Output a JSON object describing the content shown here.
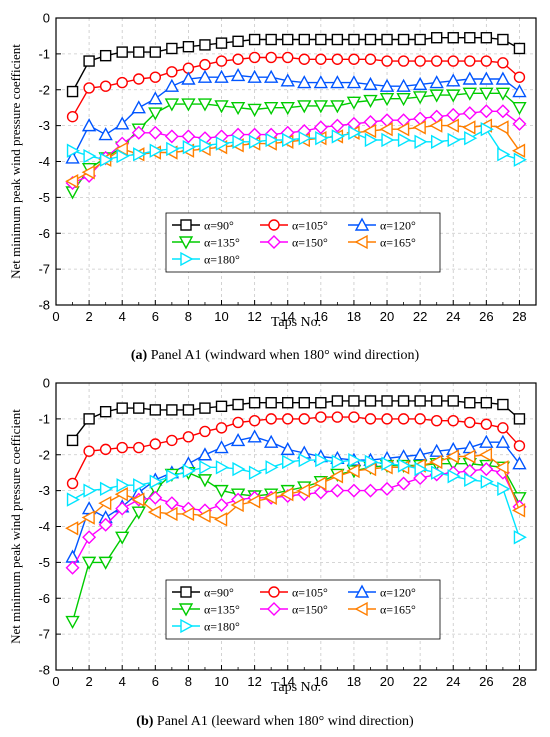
{
  "chart_data": [
    {
      "type": "line",
      "caption_label": "(a)",
      "caption_text": "Panel A1 (windward when 180° wind direction)",
      "xlabel": "Taps No.",
      "ylabel": "Net minimum peak wind pressure coefficient",
      "xlim": [
        0,
        29
      ],
      "ylim": [
        -8,
        0
      ],
      "xticks": [
        0,
        2,
        4,
        6,
        8,
        10,
        12,
        14,
        16,
        18,
        20,
        22,
        24,
        26,
        28
      ],
      "yticks": [
        0,
        -1,
        -2,
        -3,
        -4,
        -5,
        -6,
        -7,
        -8
      ],
      "grid": true,
      "legend_position": "lower-center",
      "x": [
        1,
        2,
        3,
        4,
        5,
        6,
        7,
        8,
        9,
        10,
        11,
        12,
        13,
        14,
        15,
        16,
        17,
        18,
        19,
        20,
        21,
        22,
        23,
        24,
        25,
        26,
        27,
        28
      ],
      "series": [
        {
          "name": "α=90°",
          "color": "#000000",
          "marker": "square",
          "values": [
            -2.05,
            -1.2,
            -1.05,
            -0.95,
            -0.95,
            -0.95,
            -0.85,
            -0.8,
            -0.75,
            -0.7,
            -0.65,
            -0.6,
            -0.6,
            -0.6,
            -0.6,
            -0.6,
            -0.6,
            -0.6,
            -0.6,
            -0.6,
            -0.6,
            -0.6,
            -0.55,
            -0.55,
            -0.55,
            -0.55,
            -0.6,
            -0.85
          ]
        },
        {
          "name": "α=105°",
          "color": "#ff0000",
          "marker": "circle",
          "values": [
            -2.75,
            -1.95,
            -1.9,
            -1.8,
            -1.7,
            -1.65,
            -1.5,
            -1.4,
            -1.3,
            -1.2,
            -1.15,
            -1.1,
            -1.1,
            -1.1,
            -1.15,
            -1.15,
            -1.15,
            -1.15,
            -1.15,
            -1.2,
            -1.2,
            -1.2,
            -1.2,
            -1.2,
            -1.2,
            -1.2,
            -1.25,
            -1.65
          ]
        },
        {
          "name": "α=120°",
          "color": "#0055ff",
          "marker": "triangle-up",
          "values": [
            -3.9,
            -3.0,
            -3.25,
            -2.95,
            -2.5,
            -2.25,
            -1.9,
            -1.7,
            -1.65,
            -1.65,
            -1.6,
            -1.65,
            -1.65,
            -1.75,
            -1.8,
            -1.8,
            -1.8,
            -1.8,
            -1.85,
            -1.9,
            -1.9,
            -1.85,
            -1.8,
            -1.75,
            -1.7,
            -1.7,
            -1.7,
            -2.05
          ]
        },
        {
          "name": "α=135°",
          "color": "#00cc00",
          "marker": "triangle-down",
          "values": [
            -4.85,
            -4.2,
            -3.9,
            -3.6,
            -3.1,
            -2.65,
            -2.4,
            -2.4,
            -2.4,
            -2.45,
            -2.5,
            -2.55,
            -2.5,
            -2.5,
            -2.45,
            -2.45,
            -2.45,
            -2.35,
            -2.3,
            -2.25,
            -2.25,
            -2.2,
            -2.15,
            -2.15,
            -2.1,
            -2.1,
            -2.1,
            -2.5
          ]
        },
        {
          "name": "α=150°",
          "color": "#ff00ff",
          "marker": "diamond",
          "values": [
            -4.6,
            -4.4,
            -3.9,
            -3.5,
            -3.2,
            -3.2,
            -3.3,
            -3.3,
            -3.35,
            -3.3,
            -3.25,
            -3.25,
            -3.25,
            -3.2,
            -3.15,
            -3.05,
            -3.0,
            -2.95,
            -2.9,
            -2.85,
            -2.85,
            -2.8,
            -2.75,
            -2.7,
            -2.65,
            -2.6,
            -2.6,
            -2.95
          ]
        },
        {
          "name": "α=165°",
          "color": "#ff7f00",
          "marker": "triangle-left",
          "values": [
            -4.55,
            -4.3,
            -3.95,
            -3.65,
            -3.8,
            -3.75,
            -3.75,
            -3.7,
            -3.65,
            -3.6,
            -3.55,
            -3.5,
            -3.5,
            -3.45,
            -3.4,
            -3.35,
            -3.3,
            -3.2,
            -3.15,
            -3.1,
            -3.1,
            -3.05,
            -3.0,
            -3.0,
            -3.05,
            -3.0,
            -3.05,
            -3.7
          ]
        },
        {
          "name": "α=180°",
          "color": "#00e5ff",
          "marker": "triangle-right",
          "values": [
            -3.7,
            -3.85,
            -3.95,
            -3.85,
            -3.8,
            -3.7,
            -3.65,
            -3.6,
            -3.55,
            -3.5,
            -3.45,
            -3.45,
            -3.4,
            -3.4,
            -3.35,
            -3.35,
            -3.3,
            -3.2,
            -3.4,
            -3.4,
            -3.4,
            -3.45,
            -3.45,
            -3.4,
            -3.35,
            -3.1,
            -3.8,
            -3.95
          ]
        }
      ]
    },
    {
      "type": "line",
      "caption_label": "(b)",
      "caption_text": "Panel A1 (leeward when 180° wind direction)",
      "xlabel": "Taps No.",
      "ylabel": "Net minimum peak wind pressure coefficient",
      "xlim": [
        0,
        29
      ],
      "ylim": [
        -8,
        0
      ],
      "xticks": [
        0,
        2,
        4,
        6,
        8,
        10,
        12,
        14,
        16,
        18,
        20,
        22,
        24,
        26,
        28
      ],
      "yticks": [
        0,
        -1,
        -2,
        -3,
        -4,
        -5,
        -6,
        -7,
        -8
      ],
      "grid": true,
      "legend_position": "lower-center",
      "x": [
        1,
        2,
        3,
        4,
        5,
        6,
        7,
        8,
        9,
        10,
        11,
        12,
        13,
        14,
        15,
        16,
        17,
        18,
        19,
        20,
        21,
        22,
        23,
        24,
        25,
        26,
        27,
        28
      ],
      "series": [
        {
          "name": "α=90°",
          "color": "#000000",
          "marker": "square",
          "values": [
            -1.6,
            -1.0,
            -0.8,
            -0.7,
            -0.7,
            -0.75,
            -0.75,
            -0.75,
            -0.7,
            -0.65,
            -0.6,
            -0.55,
            -0.55,
            -0.55,
            -0.55,
            -0.55,
            -0.5,
            -0.5,
            -0.5,
            -0.5,
            -0.5,
            -0.5,
            -0.5,
            -0.5,
            -0.55,
            -0.55,
            -0.6,
            -1.0
          ]
        },
        {
          "name": "α=105°",
          "color": "#ff0000",
          "marker": "circle",
          "values": [
            -2.8,
            -1.9,
            -1.85,
            -1.8,
            -1.8,
            -1.7,
            -1.6,
            -1.5,
            -1.35,
            -1.25,
            -1.1,
            -1.05,
            -1.0,
            -1.0,
            -1.0,
            -0.95,
            -0.95,
            -0.95,
            -1.0,
            -1.0,
            -1.0,
            -1.0,
            -1.05,
            -1.05,
            -1.1,
            -1.15,
            -1.25,
            -1.75
          ]
        },
        {
          "name": "α=120°",
          "color": "#0055ff",
          "marker": "triangle-up",
          "values": [
            -4.85,
            -3.5,
            -3.75,
            -3.45,
            -3.05,
            -2.7,
            -2.5,
            -2.25,
            -2.0,
            -1.8,
            -1.6,
            -1.5,
            -1.65,
            -1.85,
            -1.95,
            -2.05,
            -2.1,
            -2.15,
            -2.15,
            -2.1,
            -2.05,
            -2.0,
            -1.9,
            -1.85,
            -1.8,
            -1.65,
            -1.65,
            -2.25
          ]
        },
        {
          "name": "α=135°",
          "color": "#00cc00",
          "marker": "triangle-down",
          "values": [
            -6.65,
            -5.0,
            -5.0,
            -4.3,
            -3.6,
            -2.95,
            -2.55,
            -2.5,
            -2.7,
            -3.0,
            -3.1,
            -3.15,
            -3.1,
            -3.0,
            -2.9,
            -2.75,
            -2.55,
            -2.45,
            -2.35,
            -2.3,
            -2.3,
            -2.3,
            -2.25,
            -2.25,
            -2.25,
            -2.3,
            -2.35,
            -3.2
          ]
        },
        {
          "name": "α=150°",
          "color": "#ff00ff",
          "marker": "diamond",
          "values": [
            -5.15,
            -4.3,
            -3.95,
            -3.5,
            -3.25,
            -3.2,
            -3.35,
            -3.5,
            -3.55,
            -3.4,
            -3.25,
            -3.2,
            -3.2,
            -3.15,
            -3.1,
            -3.05,
            -3.0,
            -3.0,
            -3.0,
            -2.95,
            -2.8,
            -2.65,
            -2.55,
            -2.5,
            -2.45,
            -2.4,
            -2.5,
            -3.45
          ]
        },
        {
          "name": "α=165°",
          "color": "#ff7f00",
          "marker": "triangle-left",
          "values": [
            -4.05,
            -3.75,
            -3.35,
            -3.1,
            -3.25,
            -3.6,
            -3.65,
            -3.65,
            -3.7,
            -3.8,
            -3.4,
            -3.3,
            -3.2,
            -3.1,
            -3.0,
            -2.8,
            -2.6,
            -2.45,
            -2.4,
            -2.35,
            -2.35,
            -2.3,
            -2.2,
            -2.05,
            -2.05,
            -2.0,
            -2.35,
            -3.55
          ]
        },
        {
          "name": "α=180°",
          "color": "#00e5ff",
          "marker": "triangle-right",
          "values": [
            -3.25,
            -3.0,
            -2.95,
            -2.85,
            -2.85,
            -2.75,
            -2.6,
            -2.45,
            -2.35,
            -2.35,
            -2.4,
            -2.5,
            -2.35,
            -2.2,
            -2.15,
            -2.15,
            -2.2,
            -2.15,
            -2.2,
            -2.25,
            -2.3,
            -2.4,
            -2.5,
            -2.6,
            -2.7,
            -2.75,
            -2.95,
            -4.3
          ]
        }
      ]
    }
  ]
}
